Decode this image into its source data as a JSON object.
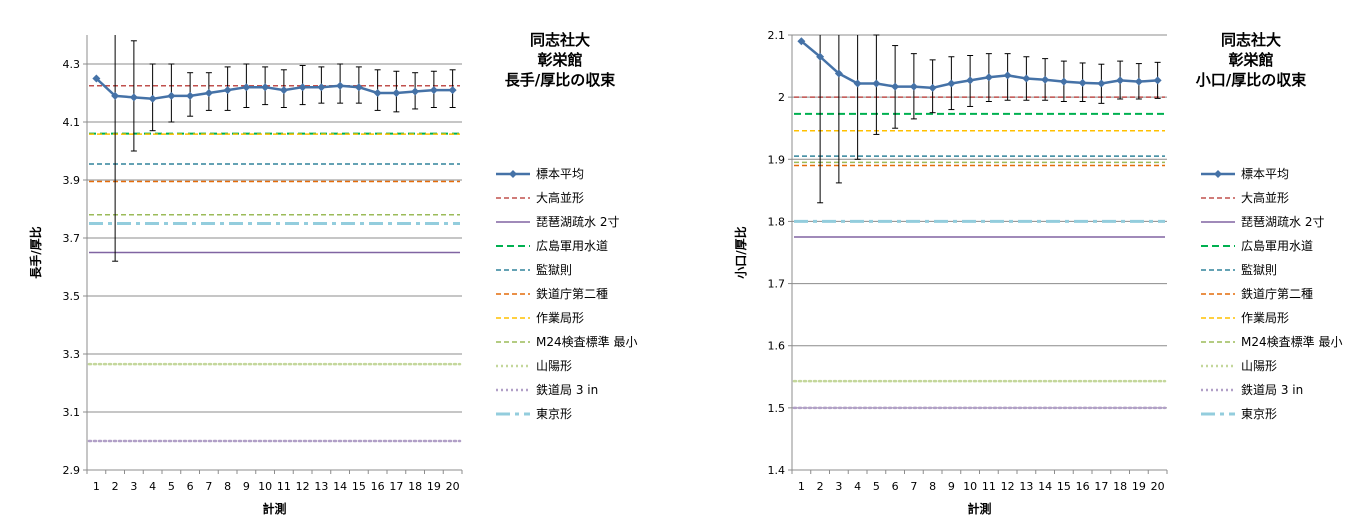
{
  "chart_data": [
    {
      "type": "line",
      "title_lines": [
        "同志社大",
        "彰栄館",
        "長手/厚比の収束"
      ],
      "xlabel": "計測",
      "ylabel": "長手/厚比",
      "x": [
        1,
        2,
        3,
        4,
        5,
        6,
        7,
        8,
        9,
        10,
        11,
        12,
        13,
        14,
        15,
        16,
        17,
        18,
        19,
        20
      ],
      "ylim": [
        2.9,
        4.4
      ],
      "yticks": [
        "2.9",
        "3.1",
        "3.3",
        "3.5",
        "3.7",
        "3.9",
        "4.1",
        "4.3"
      ],
      "grid": "horizontal",
      "legend_position": "right",
      "series": [
        {
          "name": "標本平均",
          "color": "#4572A7",
          "style": "line-marker",
          "values": [
            4.25,
            4.19,
            4.185,
            4.18,
            4.19,
            4.19,
            4.2,
            4.21,
            4.22,
            4.22,
            4.21,
            4.22,
            4.22,
            4.225,
            4.22,
            4.2,
            4.2,
            4.205,
            4.21,
            4.21
          ],
          "error_low": [
            4.25,
            3.62,
            4.0,
            4.07,
            4.1,
            4.12,
            4.14,
            4.14,
            4.15,
            4.16,
            4.15,
            4.16,
            4.165,
            4.165,
            4.165,
            4.14,
            4.135,
            4.145,
            4.15,
            4.15
          ],
          "error_high": [
            4.25,
            4.43,
            4.38,
            4.3,
            4.3,
            4.27,
            4.27,
            4.29,
            4.3,
            4.29,
            4.28,
            4.295,
            4.29,
            4.3,
            4.29,
            4.28,
            4.275,
            4.27,
            4.275,
            4.28
          ]
        },
        {
          "name": "大高並形",
          "color": "#C0504D",
          "style": "dash",
          "value": 4.225
        },
        {
          "name": "琵琶湖疏水 2寸",
          "color": "#8064A2",
          "style": "solid",
          "value": 3.65
        },
        {
          "name": "広島軍用水道",
          "color": "#00B050",
          "style": "longdash",
          "value": 4.06
        },
        {
          "name": "監獄則",
          "color": "#31849B",
          "style": "dash",
          "value": 3.955
        },
        {
          "name": "鉄道庁第二種",
          "color": "#E46C0A",
          "style": "dash",
          "value": 3.895
        },
        {
          "name": "作業局形",
          "color": "#FFC000",
          "style": "dash",
          "value": 4.058
        },
        {
          "name": "M24検査標準 最小",
          "color": "#9BBB59",
          "style": "dash",
          "value": 3.78
        },
        {
          "name": "山陽形",
          "color": "#C4D79B",
          "style": "dot",
          "value": 3.265
        },
        {
          "name": "鉄道局 3 in",
          "color": "#B1A0C7",
          "style": "dot",
          "value": 3.0
        },
        {
          "name": "東京形",
          "color": "#93CDDD",
          "style": "dashdot",
          "value": 3.75
        }
      ]
    },
    {
      "type": "line",
      "title_lines": [
        "同志社大",
        "彰栄館",
        "小口/厚比の収束"
      ],
      "xlabel": "計測",
      "ylabel": "小口/厚比",
      "x": [
        1,
        2,
        3,
        4,
        5,
        6,
        7,
        8,
        9,
        10,
        11,
        12,
        13,
        14,
        15,
        16,
        17,
        18,
        19,
        20
      ],
      "ylim": [
        1.4,
        2.1
      ],
      "yticks": [
        "1.4",
        "1.5",
        "1.6",
        "1.7",
        "1.8",
        "1.9",
        "2",
        "2.1"
      ],
      "grid": "horizontal",
      "legend_position": "right",
      "series": [
        {
          "name": "標本平均",
          "color": "#4572A7",
          "style": "line-marker",
          "values": [
            2.09,
            2.065,
            2.038,
            2.022,
            2.022,
            2.017,
            2.017,
            2.015,
            2.022,
            2.027,
            2.032,
            2.035,
            2.03,
            2.028,
            2.025,
            2.023,
            2.022,
            2.027,
            2.025,
            2.027
          ],
          "error_low": [
            2.09,
            1.83,
            1.862,
            1.9,
            1.94,
            1.95,
            1.965,
            1.975,
            1.98,
            1.985,
            1.993,
            1.995,
            1.995,
            1.995,
            1.993,
            1.993,
            1.99,
            1.997,
            1.997,
            1.998
          ],
          "error_high": [
            2.09,
            2.3,
            2.21,
            2.14,
            2.1,
            2.083,
            2.07,
            2.06,
            2.065,
            2.067,
            2.07,
            2.07,
            2.065,
            2.062,
            2.058,
            2.055,
            2.053,
            2.058,
            2.054,
            2.056
          ]
        },
        {
          "name": "大高並形",
          "color": "#C0504D",
          "style": "dash",
          "value": 2.0
        },
        {
          "name": "琵琶湖疏水 2寸",
          "color": "#8064A2",
          "style": "solid",
          "value": 1.775
        },
        {
          "name": "広島軍用水道",
          "color": "#00B050",
          "style": "longdash",
          "value": 1.973
        },
        {
          "name": "監獄則",
          "color": "#31849B",
          "style": "dash",
          "value": 1.905
        },
        {
          "name": "鉄道庁第二種",
          "color": "#E46C0A",
          "style": "dash",
          "value": 1.89
        },
        {
          "name": "作業局形",
          "color": "#FFC000",
          "style": "dash",
          "value": 1.946
        },
        {
          "name": "M24検査標準 最小",
          "color": "#9BBB59",
          "style": "dash",
          "value": 1.895
        },
        {
          "name": "山陽形",
          "color": "#C4D79B",
          "style": "dot",
          "value": 1.543
        },
        {
          "name": "鉄道局 3 in",
          "color": "#B1A0C7",
          "style": "dot",
          "value": 1.5
        },
        {
          "name": "東京形",
          "color": "#93CDDD",
          "style": "dashdot",
          "value": 1.8
        }
      ]
    }
  ]
}
